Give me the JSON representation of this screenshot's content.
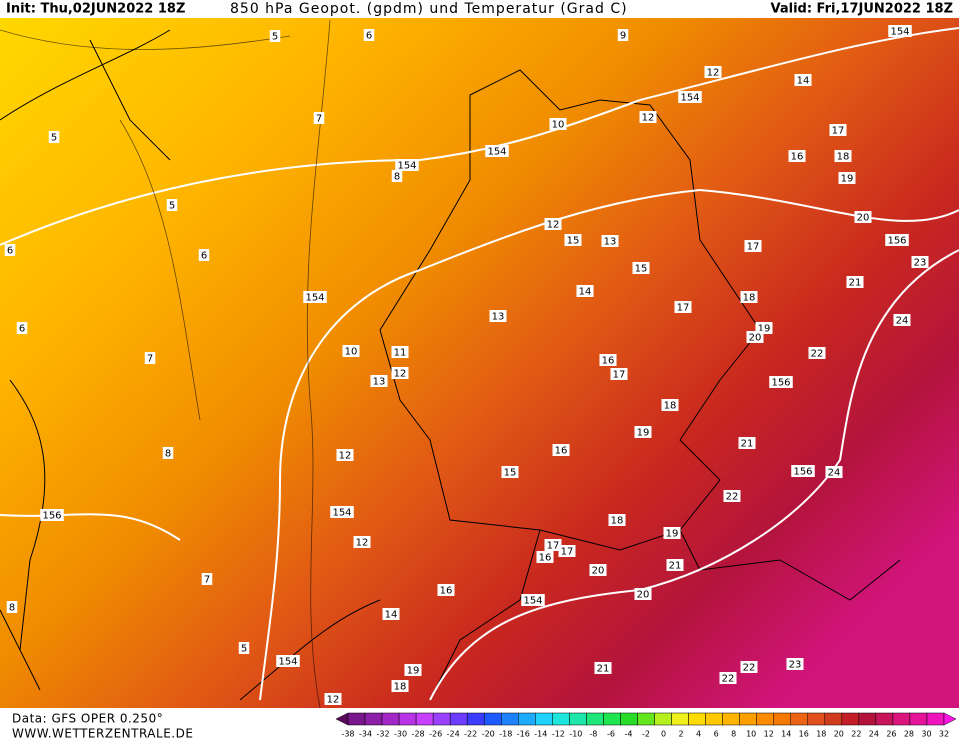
{
  "header": {
    "init": "Init: Thu,02JUN2022 18Z",
    "title": "850 hPa Geopot. (gpdm) und Temperatur (Grad C)",
    "valid": "Valid: Fri,17JUN2022 18Z"
  },
  "footer": {
    "source": "Data: GFS OPER 0.250°",
    "website": "WWW.WETTERZENTRALE.DE"
  },
  "scale": {
    "labels": [
      "-38",
      "-34",
      "-32",
      "-30",
      "-28",
      "-26",
      "-24",
      "-22",
      "-20",
      "-18",
      "-16",
      "-14",
      "-12",
      "-10",
      "-8",
      "-6",
      "-4",
      "-2",
      "0",
      "2",
      "4",
      "6",
      "8",
      "10",
      "12",
      "14",
      "16",
      "18",
      "20",
      "22",
      "24",
      "26",
      "28",
      "30",
      "32"
    ],
    "colors": [
      "#5a0a5a",
      "#78168c",
      "#8c1ea8",
      "#a428c8",
      "#b832e6",
      "#c840ff",
      "#9a40ff",
      "#6c3cff",
      "#3c3cff",
      "#1e5aff",
      "#1e82ff",
      "#1eaaff",
      "#1ed2ff",
      "#1ee6dc",
      "#1ee6aa",
      "#1ee678",
      "#1ee650",
      "#28dc28",
      "#64e61e",
      "#b4f01e",
      "#f0f01e",
      "#ffdc00",
      "#ffc800",
      "#ffb400",
      "#ffa000",
      "#ff8c00",
      "#f57800",
      "#eb6414",
      "#e1501e",
      "#d23c1e",
      "#c31e28",
      "#b4143c",
      "#c8145a",
      "#dc147d",
      "#e6149b",
      "#f014be",
      "#ff14e6"
    ]
  },
  "contour_labels": [
    "5",
    "6",
    "9",
    "154",
    "12",
    "14",
    "154",
    "5",
    "7",
    "10",
    "12",
    "17",
    "154",
    "154",
    "16",
    "18",
    "8",
    "19",
    "5",
    "20",
    "6",
    "6",
    "12",
    "15",
    "13",
    "156",
    "17",
    "23",
    "15",
    "21",
    "154",
    "14",
    "18",
    "17",
    "6",
    "13",
    "24",
    "19",
    "20",
    "10",
    "11",
    "22",
    "7",
    "16",
    "12",
    "17",
    "13",
    "156",
    "18",
    "19",
    "21",
    "8",
    "12",
    "16",
    "15",
    "156",
    "24",
    "22",
    "156",
    "154",
    "18",
    "19",
    "12",
    "17",
    "17",
    "16",
    "20",
    "21",
    "7",
    "16",
    "20",
    "154",
    "14",
    "5",
    "154",
    "21",
    "22",
    "22",
    "23",
    "19",
    "18",
    "12",
    "8"
  ]
}
